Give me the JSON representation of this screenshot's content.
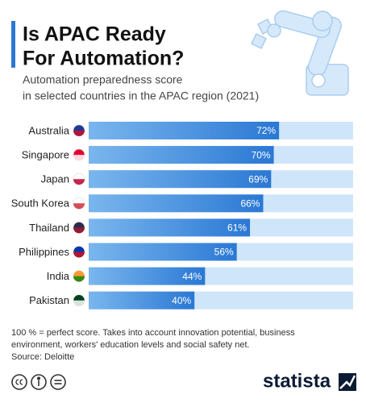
{
  "chart_data": {
    "type": "bar",
    "orientation": "horizontal",
    "title": [
      "Is APAC Ready",
      "For Automation?"
    ],
    "subtitle": [
      "Automation preparedness score",
      "in selected countries in the APAC region (2021)"
    ],
    "categories": [
      "Australia",
      "Singapore",
      "Japan",
      "South Korea",
      "Thailand",
      "Philippines",
      "India",
      "Pakistan"
    ],
    "values": [
      72,
      70,
      69,
      66,
      61,
      56,
      44,
      40
    ],
    "value_labels": [
      "72%",
      "70%",
      "69%",
      "66%",
      "61%",
      "56%",
      "44%",
      "40%"
    ],
    "color": "#2a78d4",
    "track_color": "#cfe5fa",
    "xlim": [
      0,
      100
    ],
    "note": [
      "100 % = perfect score. Takes into account innovation potential, business",
      "environment, workers' education levels and social safety net."
    ],
    "source": "Source: Deloitte",
    "brand": "statista"
  }
}
